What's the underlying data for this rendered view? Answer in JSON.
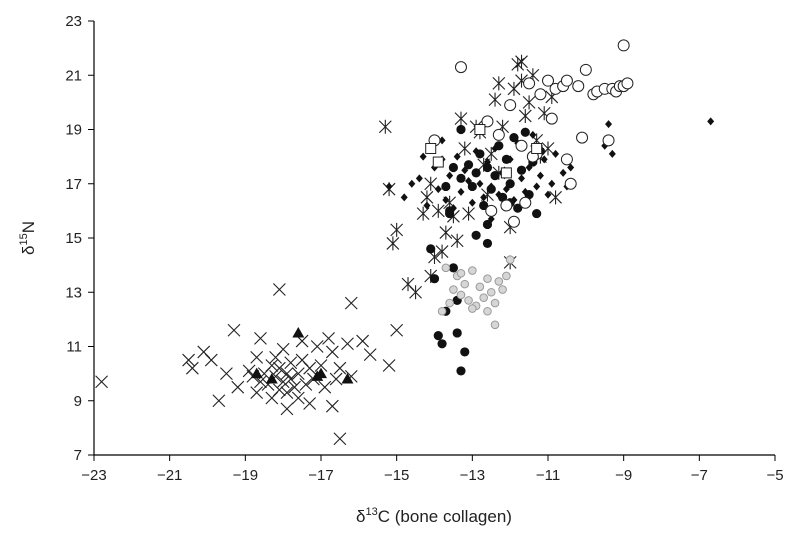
{
  "chart_data": {
    "type": "scatter",
    "title": "",
    "xlabel": {
      "symbol": "δ",
      "sup": "13",
      "rest": "C (bone collagen)"
    },
    "ylabel": {
      "symbol": "δ",
      "sup": "15",
      "rest": "N"
    },
    "xlim": [
      -23,
      -5
    ],
    "ylim": [
      7,
      23
    ],
    "xticks": [
      "−23",
      "−21",
      "−19",
      "−17",
      "−15",
      "−13",
      "−11",
      "−9",
      "−7",
      "−5"
    ],
    "yticks": [
      "7",
      "9",
      "11",
      "13",
      "15",
      "17",
      "19",
      "21",
      "23"
    ],
    "grid": false,
    "legend": "none",
    "series": [
      {
        "marker": "x",
        "color": "#222222",
        "points": [
          [
            -22.8,
            9.7
          ],
          [
            -20.5,
            10.5
          ],
          [
            -20.4,
            10.2
          ],
          [
            -20.1,
            10.8
          ],
          [
            -19.9,
            10.5
          ],
          [
            -19.7,
            9.0
          ],
          [
            -19.5,
            10.0
          ],
          [
            -19.3,
            11.6
          ],
          [
            -19.2,
            9.5
          ],
          [
            -18.9,
            10.1
          ],
          [
            -18.7,
            10.6
          ],
          [
            -18.7,
            9.3
          ],
          [
            -18.6,
            11.3
          ],
          [
            -18.5,
            10.0
          ],
          [
            -18.4,
            9.6
          ],
          [
            -18.3,
            10.3
          ],
          [
            -18.3,
            9.1
          ],
          [
            -18.2,
            10.6
          ],
          [
            -18.2,
            9.9
          ],
          [
            -18.1,
            9.4
          ],
          [
            -18.1,
            10.2
          ],
          [
            -18.0,
            9.7
          ],
          [
            -18.0,
            10.9
          ],
          [
            -17.9,
            10.0
          ],
          [
            -17.9,
            9.3
          ],
          [
            -17.8,
            9.8
          ],
          [
            -17.8,
            10.4
          ],
          [
            -17.7,
            9.5
          ],
          [
            -17.6,
            10.0
          ],
          [
            -17.6,
            9.1
          ],
          [
            -17.5,
            11.2
          ],
          [
            -17.5,
            10.5
          ],
          [
            -17.4,
            9.6
          ],
          [
            -17.3,
            10.2
          ],
          [
            -17.3,
            8.9
          ],
          [
            -17.2,
            9.8
          ],
          [
            -17.1,
            11.0
          ],
          [
            -17.0,
            10.3
          ],
          [
            -16.9,
            9.5
          ],
          [
            -16.8,
            11.3
          ],
          [
            -16.7,
            10.8
          ],
          [
            -16.7,
            8.8
          ],
          [
            -16.6,
            9.8
          ],
          [
            -16.5,
            10.2
          ],
          [
            -16.3,
            11.1
          ],
          [
            -16.2,
            9.9
          ],
          [
            -16.5,
            7.6
          ],
          [
            -18.1,
            13.1
          ],
          [
            -16.2,
            12.6
          ],
          [
            -15.9,
            11.2
          ],
          [
            -15.7,
            10.7
          ],
          [
            -15.2,
            10.3
          ],
          [
            -15.0,
            11.6
          ],
          [
            -18.6,
            9.7
          ],
          [
            -18.8,
            9.9
          ],
          [
            -17.9,
            8.7
          ]
        ]
      },
      {
        "marker": "asterisk",
        "color": "#222222",
        "points": [
          [
            -15.3,
            19.1
          ],
          [
            -15.2,
            16.8
          ],
          [
            -15.1,
            14.8
          ],
          [
            -15.0,
            15.3
          ],
          [
            -14.7,
            13.3
          ],
          [
            -14.5,
            13.0
          ],
          [
            -14.3,
            15.9
          ],
          [
            -14.2,
            16.5
          ],
          [
            -14.1,
            17.0
          ],
          [
            -14.0,
            14.3
          ],
          [
            -13.9,
            16.0
          ],
          [
            -13.8,
            14.5
          ],
          [
            -13.7,
            15.2
          ],
          [
            -13.6,
            16.3
          ],
          [
            -13.5,
            15.8
          ],
          [
            -13.3,
            19.4
          ],
          [
            -13.2,
            18.3
          ],
          [
            -13.1,
            15.9
          ],
          [
            -12.9,
            19.1
          ],
          [
            -12.8,
            18.9
          ],
          [
            -12.7,
            17.7
          ],
          [
            -12.6,
            16.6
          ],
          [
            -12.5,
            18.1
          ],
          [
            -12.4,
            20.1
          ],
          [
            -12.3,
            17.4
          ],
          [
            -12.2,
            19.1
          ],
          [
            -12.0,
            15.4
          ],
          [
            -12.0,
            14.1
          ],
          [
            -11.9,
            20.5
          ],
          [
            -11.8,
            21.4
          ],
          [
            -11.7,
            20.8
          ],
          [
            -11.6,
            19.5
          ],
          [
            -11.5,
            20.0
          ],
          [
            -11.4,
            21.0
          ],
          [
            -11.3,
            18.6
          ],
          [
            -11.2,
            18.0
          ],
          [
            -11.1,
            19.6
          ],
          [
            -11.0,
            18.3
          ],
          [
            -10.9,
            20.2
          ],
          [
            -10.8,
            16.5
          ],
          [
            -13.4,
            14.9
          ],
          [
            -14.1,
            13.6
          ],
          [
            -11.7,
            21.5
          ],
          [
            -12.3,
            20.7
          ]
        ]
      },
      {
        "marker": "filled-diamond",
        "color": "#111111",
        "points": [
          [
            -15.2,
            16.9
          ],
          [
            -14.8,
            16.5
          ],
          [
            -14.6,
            17.0
          ],
          [
            -14.4,
            17.2
          ],
          [
            -14.2,
            16.2
          ],
          [
            -14.0,
            17.6
          ],
          [
            -13.9,
            16.8
          ],
          [
            -13.8,
            17.9
          ],
          [
            -13.7,
            16.4
          ],
          [
            -13.6,
            17.3
          ],
          [
            -13.5,
            16.1
          ],
          [
            -13.4,
            18.0
          ],
          [
            -13.3,
            16.7
          ],
          [
            -13.2,
            17.5
          ],
          [
            -13.1,
            17.1
          ],
          [
            -13.0,
            16.3
          ],
          [
            -12.9,
            18.2
          ],
          [
            -12.8,
            17.0
          ],
          [
            -12.7,
            16.5
          ],
          [
            -12.6,
            17.8
          ],
          [
            -12.5,
            16.9
          ],
          [
            -12.4,
            18.3
          ],
          [
            -12.3,
            16.6
          ],
          [
            -12.2,
            17.4
          ],
          [
            -12.1,
            16.8
          ],
          [
            -12.0,
            17.9
          ],
          [
            -11.9,
            16.4
          ],
          [
            -11.8,
            18.5
          ],
          [
            -11.7,
            17.2
          ],
          [
            -11.6,
            16.7
          ],
          [
            -11.5,
            17.6
          ],
          [
            -11.4,
            18.8
          ],
          [
            -11.3,
            16.9
          ],
          [
            -11.2,
            17.3
          ],
          [
            -11.1,
            17.9
          ],
          [
            -11.0,
            16.6
          ],
          [
            -10.9,
            17.0
          ],
          [
            -10.8,
            18.1
          ],
          [
            -10.6,
            17.4
          ],
          [
            -10.5,
            16.9
          ],
          [
            -10.4,
            17.6
          ],
          [
            -9.5,
            18.4
          ],
          [
            -9.4,
            19.2
          ],
          [
            -9.3,
            18.1
          ],
          [
            -6.7,
            19.3
          ],
          [
            -12.5,
            15.7
          ],
          [
            -13.8,
            18.6
          ],
          [
            -14.3,
            18.0
          ]
        ]
      },
      {
        "marker": "filled-circle",
        "color": "#111111",
        "points": [
          [
            -14.1,
            14.6
          ],
          [
            -14.0,
            13.5
          ],
          [
            -13.9,
            11.4
          ],
          [
            -13.8,
            11.1
          ],
          [
            -13.7,
            12.3
          ],
          [
            -13.5,
            13.9
          ],
          [
            -13.4,
            12.7
          ],
          [
            -13.4,
            11.5
          ],
          [
            -13.3,
            10.1
          ],
          [
            -13.2,
            10.8
          ],
          [
            -13.3,
            17.2
          ],
          [
            -13.1,
            17.7
          ],
          [
            -13.0,
            16.9
          ],
          [
            -12.9,
            17.4
          ],
          [
            -12.8,
            18.1
          ],
          [
            -12.7,
            16.2
          ],
          [
            -12.6,
            17.6
          ],
          [
            -12.5,
            16.8
          ],
          [
            -12.4,
            17.3
          ],
          [
            -12.3,
            18.4
          ],
          [
            -12.2,
            16.5
          ],
          [
            -12.1,
            17.9
          ],
          [
            -12.0,
            17.0
          ],
          [
            -11.9,
            18.7
          ],
          [
            -11.8,
            16.1
          ],
          [
            -11.7,
            17.5
          ],
          [
            -11.6,
            18.9
          ],
          [
            -11.5,
            16.6
          ],
          [
            -11.4,
            17.8
          ],
          [
            -11.3,
            15.9
          ],
          [
            -11.2,
            18.2
          ],
          [
            -13.3,
            19.0
          ],
          [
            -13.5,
            17.6
          ],
          [
            -13.6,
            16.0
          ],
          [
            -12.9,
            15.1
          ],
          [
            -12.6,
            14.8
          ],
          [
            -13.7,
            16.9
          ],
          [
            -12.0,
            16.3
          ],
          [
            -12.6,
            15.5
          ],
          [
            -13.6,
            15.9
          ]
        ]
      },
      {
        "marker": "open-circle",
        "color": "#222222",
        "points": [
          [
            -14.0,
            18.6
          ],
          [
            -13.3,
            21.3
          ],
          [
            -12.6,
            19.3
          ],
          [
            -12.5,
            16.0
          ],
          [
            -12.3,
            18.8
          ],
          [
            -12.0,
            19.9
          ],
          [
            -11.9,
            15.6
          ],
          [
            -11.7,
            18.4
          ],
          [
            -11.5,
            20.7
          ],
          [
            -11.3,
            18.1
          ],
          [
            -11.2,
            20.3
          ],
          [
            -11.0,
            20.8
          ],
          [
            -10.9,
            19.4
          ],
          [
            -10.8,
            20.5
          ],
          [
            -10.6,
            20.6
          ],
          [
            -10.5,
            17.9
          ],
          [
            -10.4,
            17.0
          ],
          [
            -10.2,
            20.6
          ],
          [
            -10.0,
            21.2
          ],
          [
            -9.8,
            20.3
          ],
          [
            -9.7,
            20.4
          ],
          [
            -9.5,
            20.5
          ],
          [
            -9.3,
            20.5
          ],
          [
            -9.2,
            20.4
          ],
          [
            -9.1,
            20.6
          ],
          [
            -9.0,
            20.6
          ],
          [
            -8.9,
            20.7
          ],
          [
            -9.0,
            22.1
          ],
          [
            -9.4,
            18.6
          ],
          [
            -10.1,
            18.7
          ],
          [
            -11.4,
            18.0
          ],
          [
            -10.5,
            20.8
          ],
          [
            -12.1,
            16.2
          ],
          [
            -11.6,
            16.3
          ]
        ]
      },
      {
        "marker": "open-square",
        "color": "#222222",
        "points": [
          [
            -14.1,
            18.3
          ],
          [
            -13.9,
            17.8
          ],
          [
            -12.8,
            19.0
          ],
          [
            -11.3,
            18.3
          ],
          [
            -12.1,
            17.4
          ]
        ]
      },
      {
        "marker": "grey-circle",
        "color": "#9a9a9a",
        "points": [
          [
            -13.8,
            12.3
          ],
          [
            -13.6,
            12.6
          ],
          [
            -13.5,
            13.1
          ],
          [
            -13.4,
            13.6
          ],
          [
            -13.3,
            12.9
          ],
          [
            -13.2,
            13.3
          ],
          [
            -13.1,
            12.7
          ],
          [
            -13.0,
            13.8
          ],
          [
            -12.9,
            12.5
          ],
          [
            -12.8,
            13.2
          ],
          [
            -12.7,
            12.8
          ],
          [
            -12.6,
            13.5
          ],
          [
            -12.5,
            13.0
          ],
          [
            -12.4,
            12.6
          ],
          [
            -12.3,
            13.4
          ],
          [
            -12.2,
            13.1
          ],
          [
            -12.1,
            13.6
          ],
          [
            -12.0,
            14.2
          ],
          [
            -12.4,
            11.8
          ],
          [
            -13.7,
            13.9
          ],
          [
            -13.0,
            12.4
          ],
          [
            -13.3,
            13.7
          ],
          [
            -12.6,
            12.3
          ]
        ]
      },
      {
        "marker": "filled-triangle",
        "color": "#111111",
        "points": [
          [
            -18.7,
            10.0
          ],
          [
            -18.3,
            9.8
          ],
          [
            -17.6,
            11.5
          ],
          [
            -17.1,
            9.9
          ],
          [
            -17.0,
            10.0
          ],
          [
            -16.3,
            9.8
          ]
        ]
      }
    ]
  }
}
